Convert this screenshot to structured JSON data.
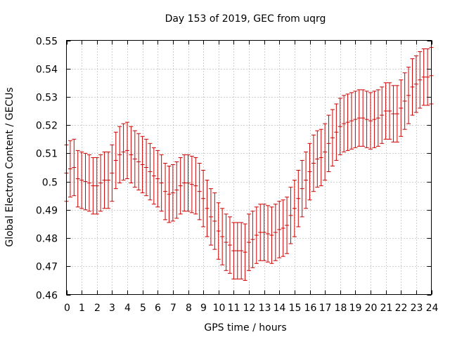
{
  "chart_data": {
    "type": "errorbar",
    "title": "Day 153 of 2019, GEC from uqrg",
    "xlabel": "GPS time / hours",
    "ylabel": "Global Electron Content / GECUs",
    "xlim": [
      0,
      24
    ],
    "ylim": [
      0.46,
      0.55
    ],
    "grid": true,
    "xticks": [
      0,
      1,
      2,
      3,
      4,
      5,
      6,
      7,
      8,
      9,
      10,
      11,
      12,
      13,
      14,
      15,
      16,
      17,
      18,
      19,
      20,
      21,
      22,
      23,
      24
    ],
    "xtick_labels": [
      "0",
      "1",
      "2",
      "3",
      "4",
      "5",
      "6",
      "7",
      "8",
      "9",
      "10",
      "11",
      "12",
      "13",
      "14",
      "15",
      "16",
      "17",
      "18",
      "19",
      "20",
      "21",
      "22",
      "23",
      "24"
    ],
    "yticks": [
      0.46,
      0.47,
      0.48,
      0.49,
      0.5,
      0.51,
      0.52,
      0.53,
      0.54,
      0.55
    ],
    "ytick_labels": [
      "0.46",
      "0.47",
      "0.48",
      "0.49",
      "0.5",
      "0.51",
      "0.52",
      "0.53",
      "0.54",
      "0.55"
    ],
    "color": "#cc0000",
    "error": 0.01,
    "series": [
      {
        "name": "GEC",
        "x": [
          0,
          0.25,
          0.5,
          0.75,
          1,
          1.25,
          1.5,
          1.75,
          2,
          2.25,
          2.5,
          2.75,
          3,
          3.25,
          3.5,
          3.75,
          4,
          4.25,
          4.5,
          4.75,
          5,
          5.25,
          5.5,
          5.75,
          6,
          6.25,
          6.5,
          6.75,
          7,
          7.25,
          7.5,
          7.75,
          8,
          8.25,
          8.5,
          8.75,
          9,
          9.25,
          9.5,
          9.75,
          10,
          10.25,
          10.5,
          10.75,
          11,
          11.25,
          11.5,
          11.75,
          12,
          12.25,
          12.5,
          12.75,
          13,
          13.25,
          13.5,
          13.75,
          14,
          14.25,
          14.5,
          14.75,
          15,
          15.25,
          15.5,
          15.75,
          16,
          16.25,
          16.5,
          16.75,
          17,
          17.25,
          17.5,
          17.75,
          18,
          18.25,
          18.5,
          18.75,
          19,
          19.25,
          19.5,
          19.75,
          20,
          20.25,
          20.5,
          20.75,
          21,
          21.25,
          21.5,
          21.75,
          22,
          22.25,
          22.5,
          22.75,
          23,
          23.25,
          23.5,
          23.75,
          24
        ],
        "y": [
          0.503,
          0.5045,
          0.505,
          0.501,
          0.5005,
          0.5,
          0.4995,
          0.4985,
          0.4985,
          0.4995,
          0.5005,
          0.5005,
          0.503,
          0.5075,
          0.5095,
          0.5105,
          0.511,
          0.5095,
          0.508,
          0.507,
          0.506,
          0.505,
          0.5035,
          0.502,
          0.501,
          0.4995,
          0.4965,
          0.4955,
          0.496,
          0.497,
          0.4985,
          0.4995,
          0.4995,
          0.499,
          0.4985,
          0.4965,
          0.494,
          0.4905,
          0.4875,
          0.486,
          0.4825,
          0.4805,
          0.4785,
          0.4775,
          0.4755,
          0.4755,
          0.4755,
          0.475,
          0.4785,
          0.4795,
          0.481,
          0.482,
          0.482,
          0.4815,
          0.481,
          0.482,
          0.483,
          0.4835,
          0.4845,
          0.488,
          0.4905,
          0.494,
          0.4975,
          0.5005,
          0.5035,
          0.5065,
          0.508,
          0.5085,
          0.5105,
          0.5135,
          0.5155,
          0.5175,
          0.5195,
          0.5205,
          0.521,
          0.5215,
          0.522,
          0.5225,
          0.5225,
          0.522,
          0.5215,
          0.522,
          0.5225,
          0.5235,
          0.525,
          0.525,
          0.524,
          0.524,
          0.526,
          0.5285,
          0.5305,
          0.5335,
          0.5345,
          0.536,
          0.537,
          0.537,
          0.5375
        ]
      }
    ]
  }
}
